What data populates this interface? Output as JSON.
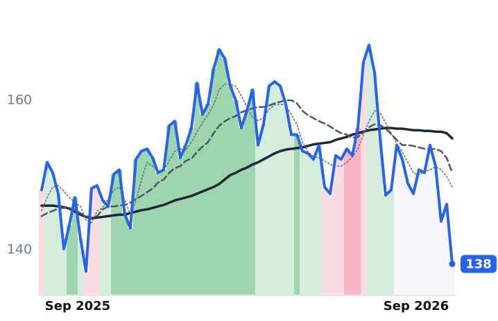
{
  "chart_data": {
    "type": "line",
    "categories": [
      null,
      null,
      null,
      null,
      null,
      null,
      "Sep 2025",
      null,
      null,
      null,
      null,
      null,
      null,
      null,
      null,
      null,
      null,
      null,
      null,
      null,
      null,
      null,
      null,
      null,
      null,
      null,
      null,
      null,
      null,
      null,
      null,
      null,
      null,
      null,
      null,
      null,
      null,
      null,
      null,
      null,
      null,
      null,
      null,
      null,
      null,
      null,
      null,
      null,
      null,
      null,
      null,
      null,
      null,
      null,
      null,
      null,
      null,
      null,
      null,
      null,
      null,
      null,
      null,
      null,
      null,
      null,
      null,
      "Sep 2026",
      null,
      null,
      null,
      null,
      null,
      null,
      null
    ],
    "ylim": [
      134,
      172
    ],
    "yticks": [
      140,
      160
    ],
    "last_label": "138",
    "series": [
      {
        "color": "#1f2637",
        "width": 3.5,
        "dash": "solid",
        "values": [
          145.9,
          145.9,
          145.9,
          145.8,
          145.7,
          145.5,
          145.1,
          144.7,
          144.4,
          144.2,
          144.3,
          144.4,
          144.5,
          144.6,
          144.7,
          144.7,
          144.9,
          145.1,
          145.3,
          145.4,
          145.6,
          145.8,
          146.0,
          146.3,
          146.6,
          146.8,
          147.0,
          147.2,
          147.5,
          147.8,
          148.1,
          148.4,
          148.8,
          149.4,
          150.0,
          150.3,
          150.7,
          151.0,
          151.4,
          151.7,
          152.1,
          152.5,
          152.9,
          153.2,
          153.4,
          153.5,
          153.6,
          153.7,
          153.9,
          154.1,
          154.2,
          154.3,
          154.4,
          154.7,
          154.9,
          155.1,
          155.4,
          155.6,
          155.8,
          156.0,
          156.1,
          156.2,
          156.3,
          156.3,
          156.2,
          156.2,
          156.1,
          156.0,
          156.0,
          155.9,
          155.9,
          155.8,
          155.8,
          155.6,
          154.9
        ]
      },
      {
        "color": "#4a5568",
        "width": 2.5,
        "dash": "dashed",
        "values": [
          144.5,
          144.9,
          145.2,
          145.5,
          145.6,
          145.6,
          145.3,
          144.9,
          144.5,
          144.3,
          144.5,
          145.4,
          145.8,
          145.8,
          145.9,
          146.0,
          146.3,
          146.8,
          147.2,
          147.7,
          148.2,
          149.0,
          149.4,
          150.3,
          150.9,
          151.2,
          151.9,
          152.2,
          153.1,
          153.8,
          154.4,
          155.6,
          156.6,
          157.2,
          157.6,
          157.9,
          158.4,
          158.7,
          158.9,
          159.1,
          159.1,
          159.3,
          159.6,
          159.8,
          160.0,
          160.0,
          159.6,
          158.6,
          158.0,
          157.6,
          157.2,
          156.9,
          156.5,
          156.0,
          155.6,
          155.4,
          155.0,
          155.1,
          155.7,
          156.4,
          156.8,
          156.7,
          156.2,
          155.5,
          154.7,
          154.0,
          154.0,
          153.9,
          153.7,
          153.5,
          153.5,
          153.5,
          153.2,
          152.3,
          150.3
        ]
      },
      {
        "color": "#6b7280",
        "width": 1.6,
        "dash": "dotted",
        "values": [
          145.2,
          147.0,
          148.4,
          148.6,
          147.8,
          147.0,
          146.3,
          145.8,
          144.0,
          143.6,
          145.2,
          145.6,
          146.8,
          148.0,
          148.4,
          146.6,
          144.7,
          146.6,
          149.4,
          151.7,
          151.2,
          150.5,
          150.7,
          151.9,
          153.2,
          153.5,
          153.3,
          154.4,
          155.8,
          157.0,
          158.1,
          159.4,
          161.4,
          162.2,
          162.1,
          161.9,
          160.6,
          159.1,
          157.7,
          157.3,
          157.7,
          158.8,
          159.4,
          159.5,
          159.3,
          158.1,
          156.8,
          154.4,
          153.1,
          152.5,
          152.3,
          151.9,
          151.4,
          151.2,
          151.2,
          151.7,
          152.4,
          153.5,
          155.4,
          157.2,
          158.6,
          158.3,
          157.0,
          155.6,
          154.2,
          153.1,
          151.7,
          150.3,
          150.0,
          150.5,
          150.7,
          151.1,
          150.7,
          149.8,
          148.4
        ]
      },
      {
        "color": "#2563eb",
        "width": 4,
        "dash": "solid",
        "values": [
          148.0,
          151.7,
          150.3,
          147.5,
          140.1,
          143.3,
          147.0,
          141.5,
          137.1,
          148.2,
          148.6,
          146.6,
          145.8,
          150.1,
          150.7,
          144.7,
          142.9,
          152.1,
          153.2,
          153.5,
          152.3,
          150.3,
          150.7,
          156.6,
          157.2,
          152.3,
          154.0,
          156.3,
          162.3,
          158.1,
          159.5,
          164.2,
          166.8,
          165.6,
          161.9,
          160.0,
          156.3,
          158.6,
          161.4,
          154.0,
          156.8,
          161.9,
          162.5,
          161.9,
          159.5,
          155.4,
          155.4,
          153.2,
          152.9,
          152.1,
          154.0,
          148.4,
          147.5,
          152.6,
          152.1,
          153.5,
          152.6,
          156.3,
          165.1,
          167.4,
          163.7,
          154.9,
          147.3,
          148.0,
          154.0,
          152.1,
          148.9,
          147.5,
          150.7,
          150.3,
          154.0,
          151.2,
          143.8,
          146.1,
          138.1
        ],
        "area_colors": [
          "#fcdde3",
          "#d4ecdb",
          "#d4ecdb",
          "#d4ecdb",
          "#d4ecdb",
          "#9dd5ad",
          "#9dd5ad",
          "#d4ecdb",
          "#fcdde3",
          "#fcdde3",
          "#fcdde3",
          "#d4ecdb",
          "#d4ecdb",
          "#9dd5ad",
          "#9dd5ad",
          "#9dd5ad",
          "#9dd5ad",
          "#9dd5ad",
          "#9dd5ad",
          "#9dd5ad",
          "#9dd5ad",
          "#9dd5ad",
          "#9dd5ad",
          "#9dd5ad",
          "#9dd5ad",
          "#9dd5ad",
          "#9dd5ad",
          "#9dd5ad",
          "#9dd5ad",
          "#9dd5ad",
          "#9dd5ad",
          "#9dd5ad",
          "#9dd5ad",
          "#9dd5ad",
          "#9dd5ad",
          "#9dd5ad",
          "#9dd5ad",
          "#9dd5ad",
          "#9dd5ad",
          "#d4ecdb",
          "#d4ecdb",
          "#d4ecdb",
          "#d4ecdb",
          "#d4ecdb",
          "#d4ecdb",
          "#d4ecdb",
          "#9dd5ad",
          "#d4ecdb",
          "#d4ecdb",
          "#d4ecdb",
          "#d4ecdb",
          "#fcdde3",
          "#fcdde3",
          "#fcdde3",
          "#fcdde3",
          "#f8b4c1",
          "#f8b4c1",
          "#f8b4c1",
          "#fcdde3",
          "#d4ecdb",
          "#d4ecdb",
          "#d4ecdb",
          "#d4ecdb",
          "#d4ecdb",
          "#f4f6fb",
          "#f4f6fb",
          "#f4f6fb",
          "#f4f6fb",
          "#f4f6fb",
          "#f4f6fb",
          "#f4f6fb",
          "#f4f6fb",
          "#f4f6fb",
          "#f4f6fb",
          "#f4f6fb"
        ]
      }
    ]
  }
}
